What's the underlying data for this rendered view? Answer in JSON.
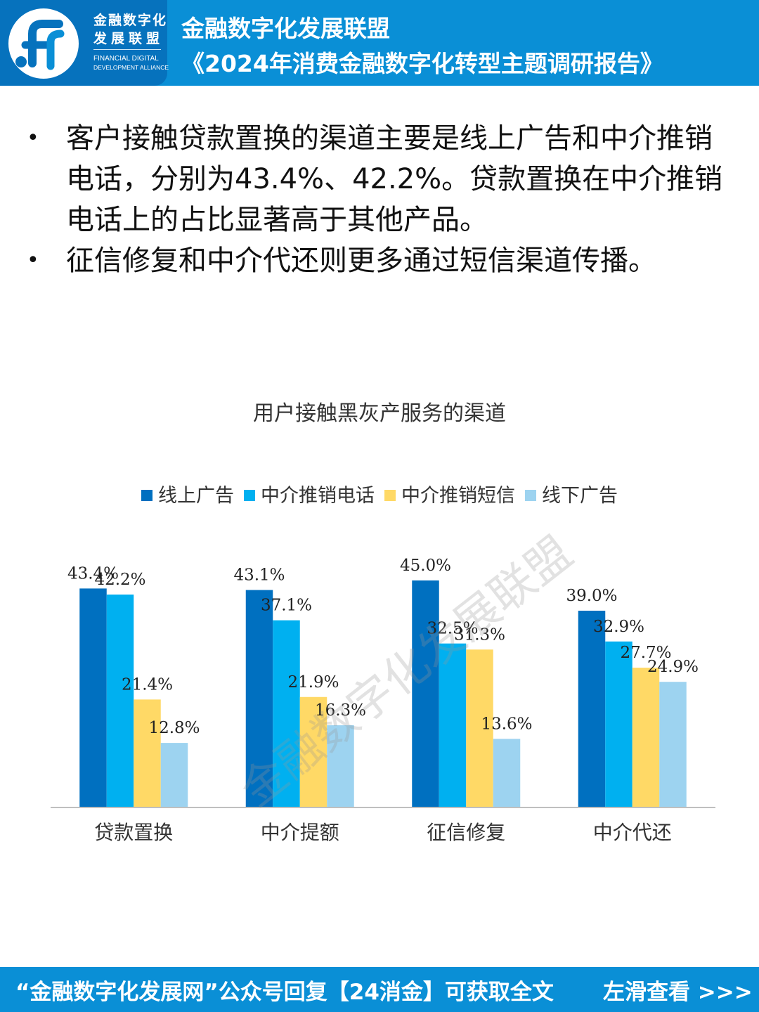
{
  "header": {
    "logo_cn_line1": "金融数字化",
    "logo_cn_line2": "发展联盟",
    "logo_en_line1": "FINANCIAL DIGITAL",
    "logo_en_line2": "DEVELOPMENT ALLIANCE",
    "title_line1": "金融数字化发展联盟",
    "title_line2": "《2024年消费金融数字化转型主题调研报告》"
  },
  "bullets": [
    {
      "text": "客户接触贷款置换的渠道主要是线上广告和中介推销电话，分别为43.4%、42.2%。贷款置换在中介推销电话上的占比显著高于其他产品。"
    },
    {
      "text": "征信修复和中介代还则更多通过短信渠道传播。"
    }
  ],
  "bullet_marker": "•",
  "watermark": "金融数字化发展联盟",
  "colors": {
    "header_bg": "#0a8fd6",
    "logo_bg": "#0672bd",
    "series": [
      "#0070c0",
      "#00b0f0",
      "#ffd966",
      "#9dd3f0"
    ]
  },
  "chart_data": {
    "type": "bar",
    "title": "用户接触黑灰产服务的渠道",
    "categories": [
      "贷款置换",
      "中介提额",
      "征信修复",
      "中介代还"
    ],
    "series": [
      {
        "name": "线上广告",
        "values": [
          43.4,
          43.1,
          45.0,
          39.0
        ]
      },
      {
        "name": "中介推销电话",
        "values": [
          42.2,
          37.1,
          32.5,
          32.9
        ]
      },
      {
        "name": "中介推销短信",
        "values": [
          21.4,
          21.9,
          31.3,
          27.7
        ]
      },
      {
        "name": "线下广告",
        "values": [
          12.8,
          16.3,
          13.6,
          24.9
        ]
      }
    ],
    "value_labels": [
      [
        "43.4%",
        "43.1%",
        "45.0%",
        "39.0%"
      ],
      [
        "42.2%",
        "37.1%",
        "32.5%",
        "32.9%"
      ],
      [
        "21.4%",
        "21.9%",
        "31.3%",
        "27.7%"
      ],
      [
        "12.8%",
        "16.3%",
        "13.6%",
        "24.9%"
      ]
    ],
    "ylim": [
      0,
      50
    ],
    "grid": false,
    "legend_position": "top",
    "xlabel": "",
    "ylabel": ""
  },
  "footer": {
    "left_text": "“金融数字化发展网”公众号回复【24消金】可获取全文",
    "right_text": "左滑查看 >>>"
  }
}
